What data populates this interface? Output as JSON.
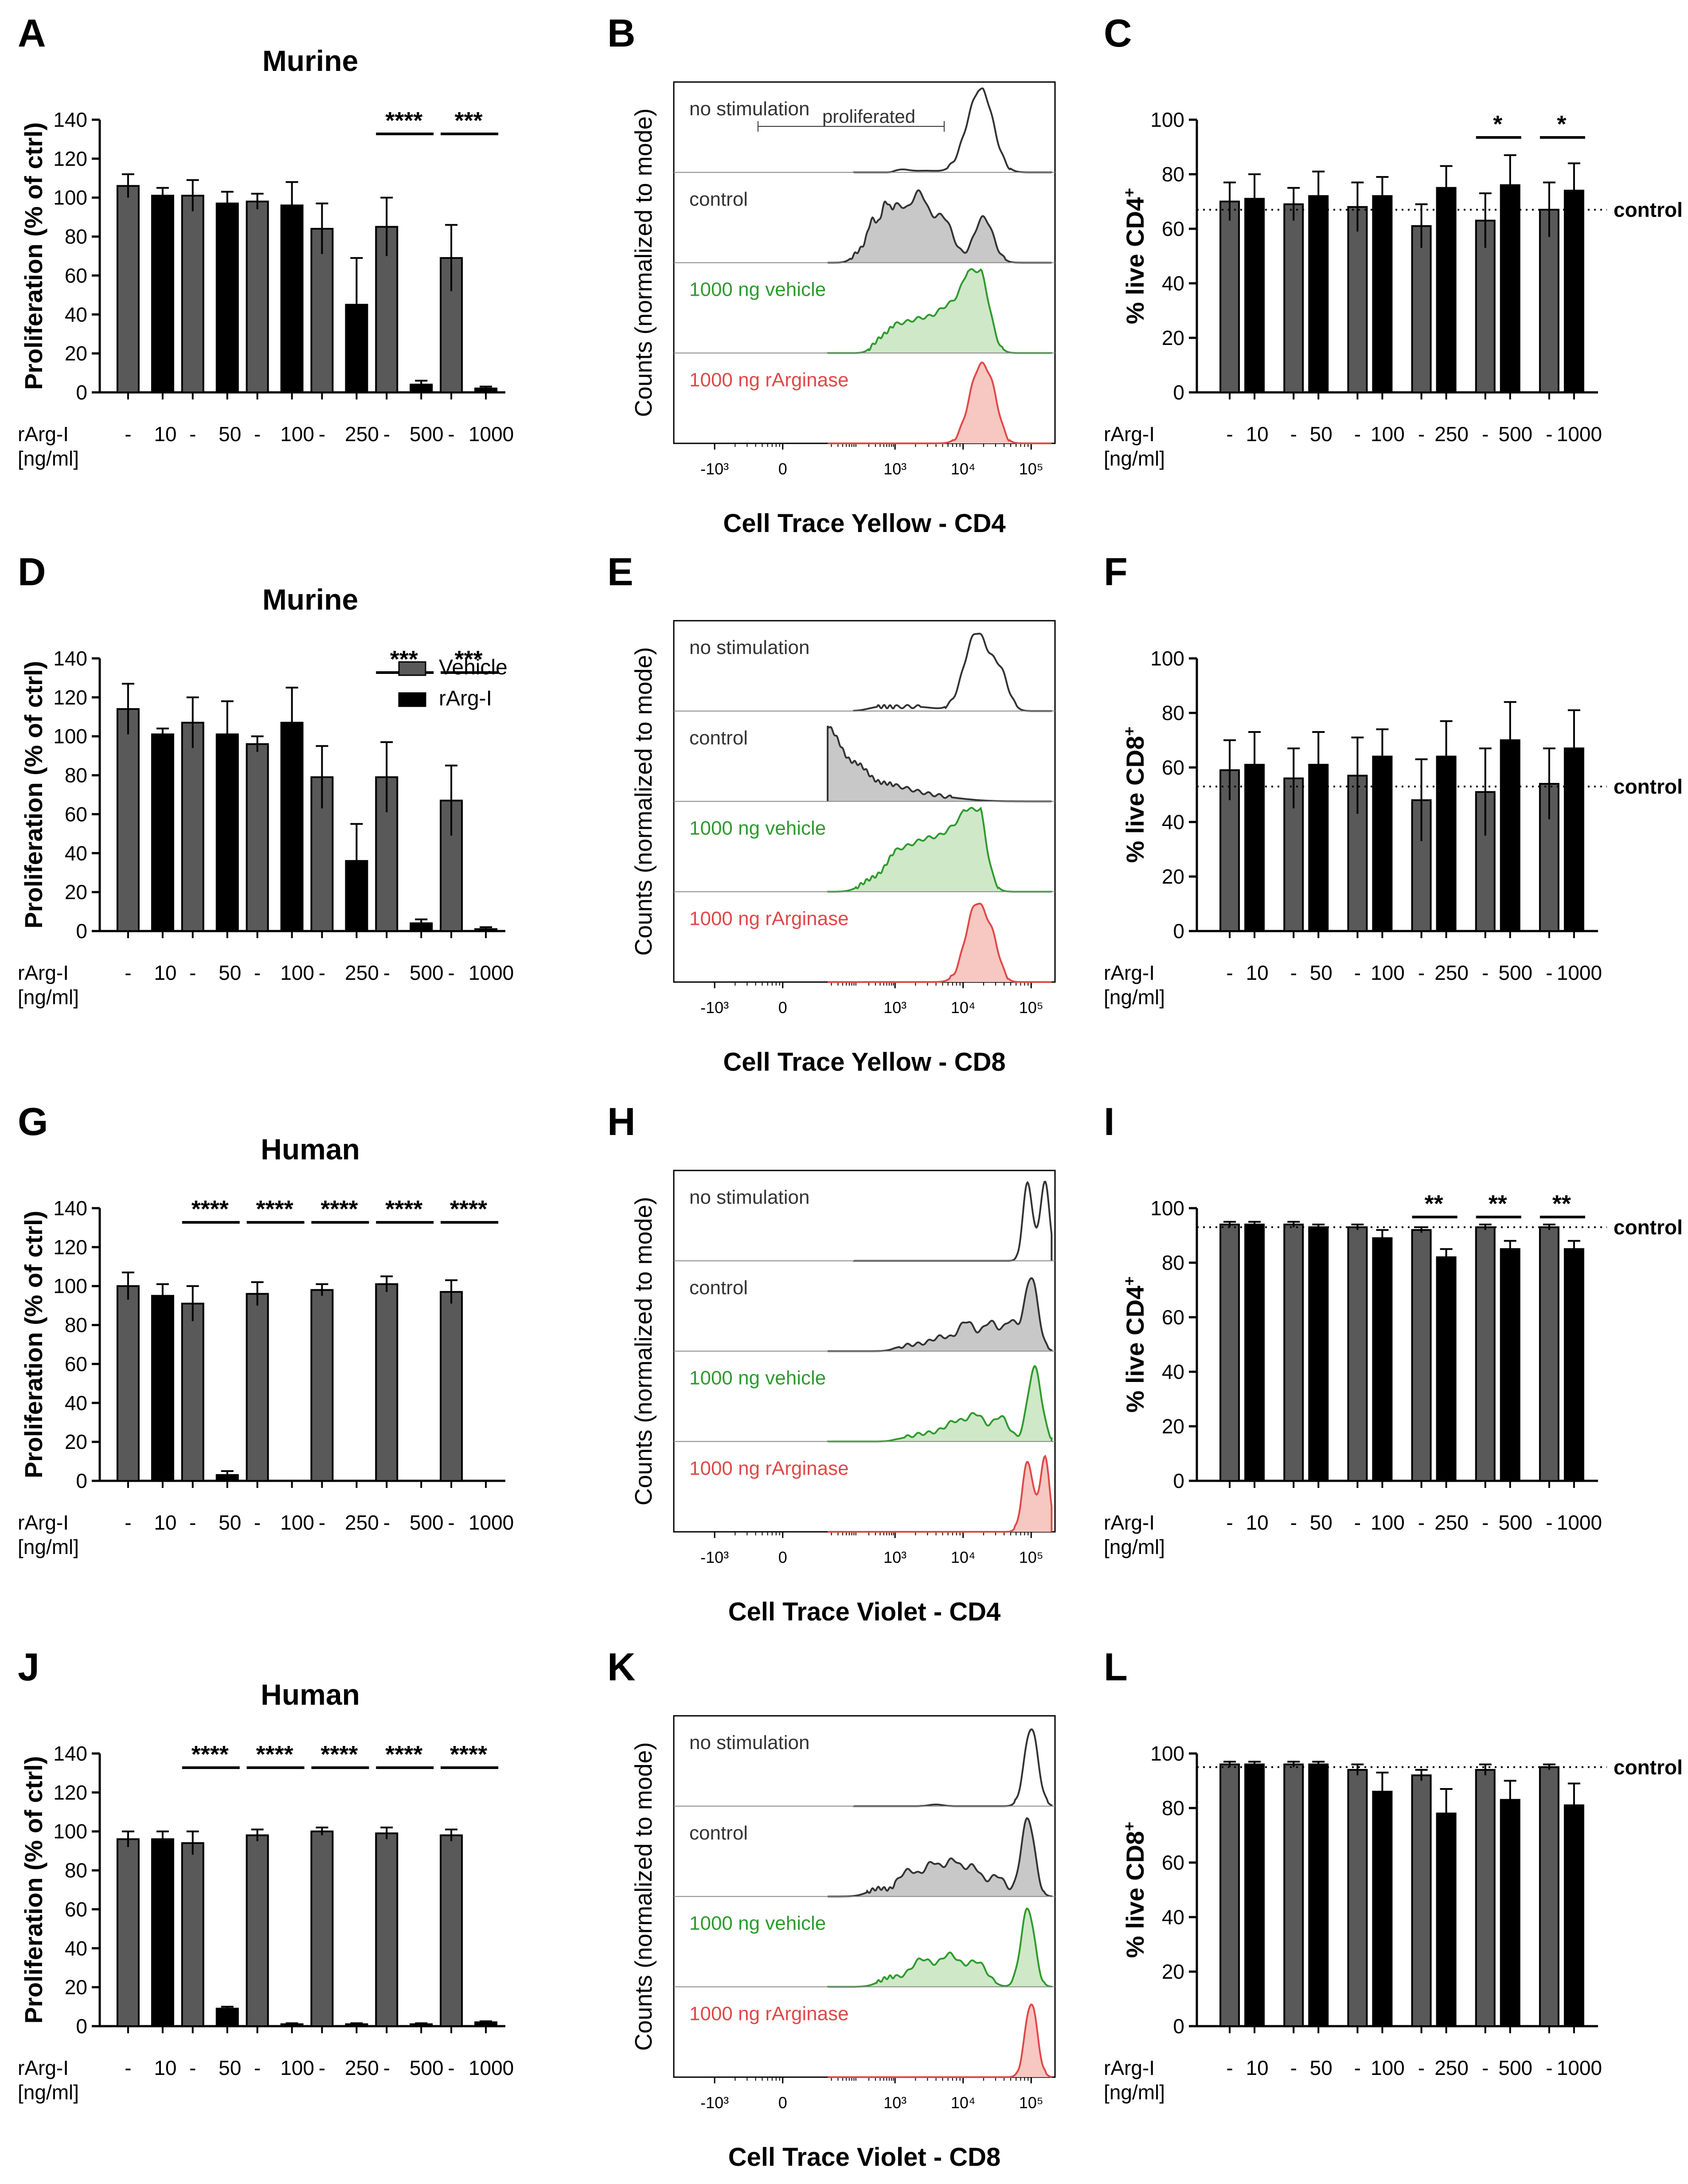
{
  "figure": {
    "colors": {
      "vehicle": "#595959",
      "rarg": "#000000",
      "control_fill": "#c8c8c8",
      "vehicle_line": "#2e9a2e",
      "vehicle_fill": "#cfe8c8",
      "rarg_line": "#e04848",
      "rarg_fill": "#f7c7c2",
      "nostim_line": "#333333"
    },
    "common": {
      "dose_row_label": "rArg-I",
      "dose_row_unit": "[ng/ml]",
      "vehicle_mark": "-",
      "doses": [
        "10",
        "50",
        "100",
        "250",
        "500",
        "1000"
      ],
      "control_label": "control",
      "histogram_ylabel": "Counts (normalized to mode)",
      "legend": {
        "vehicle": "Vehicle",
        "rarg": "rArg-I"
      }
    }
  },
  "chart_data": [
    {
      "panel": "A",
      "type": "bar",
      "title": "Murine",
      "ylabel": "Proliferation (% of ctrl)",
      "ylim": [
        0,
        140
      ],
      "yticks": [
        0,
        20,
        40,
        60,
        80,
        100,
        120,
        140
      ],
      "categories": [
        "10",
        "50",
        "100",
        "250",
        "500",
        "1000"
      ],
      "series": [
        {
          "name": "Vehicle",
          "values": [
            106,
            101,
            98,
            84,
            85,
            69
          ],
          "errors": [
            6,
            8,
            4,
            13,
            15,
            17
          ]
        },
        {
          "name": "rArg-I",
          "values": [
            101,
            97,
            96,
            45,
            4,
            2
          ],
          "errors": [
            4,
            6,
            12,
            24,
            2,
            1
          ]
        }
      ],
      "significance": [
        {
          "category": "500",
          "label": "****"
        },
        {
          "category": "1000",
          "label": "***"
        }
      ]
    },
    {
      "panel": "B",
      "type": "histogram",
      "xlabel": "Cell Trace Yellow - CD4",
      "xticks": [
        "-10³",
        "0",
        "10³",
        "10⁴",
        "10⁵"
      ],
      "tracks": [
        {
          "label": "no stimulation",
          "style": "nostim",
          "peaks": [
            [
              3.1,
              0.03,
              0.1
            ],
            [
              3.45,
              0.02,
              0.22
            ],
            [
              4.28,
              0.95,
              0.17
            ],
            [
              4.05,
              0.2,
              0.15
            ]
          ]
        },
        {
          "label": "control",
          "style": "control",
          "peaks": [
            [
              2.4,
              0.45,
              0.13
            ],
            [
              2.75,
              0.7,
              0.14
            ],
            [
              3.05,
              0.58,
              0.12
            ],
            [
              3.35,
              0.8,
              0.13
            ],
            [
              3.7,
              0.55,
              0.15
            ],
            [
              4.3,
              0.55,
              0.14
            ],
            [
              2.1,
              0.15,
              0.2
            ]
          ]
        },
        {
          "label": "1000 ng vehicle",
          "style": "vehicle",
          "peaks": [
            [
              2.6,
              0.15,
              0.2
            ],
            [
              3.0,
              0.28,
              0.2
            ],
            [
              3.4,
              0.35,
              0.2
            ],
            [
              3.8,
              0.5,
              0.18
            ],
            [
              4.25,
              0.9,
              0.14
            ],
            [
              4.05,
              0.45,
              0.12
            ]
          ]
        },
        {
          "label": "1000 ng rArginase",
          "style": "rarg",
          "peaks": [
            [
              4.25,
              0.92,
              0.16
            ],
            [
              4.45,
              0.25,
              0.1
            ]
          ]
        }
      ],
      "annotation": "proliferated"
    },
    {
      "panel": "C",
      "type": "bar",
      "ylabel_main": "% live CD4",
      "ylabel_sup": "+",
      "ylim": [
        0,
        100
      ],
      "yticks": [
        0,
        20,
        40,
        60,
        80,
        100
      ],
      "categories": [
        "10",
        "50",
        "100",
        "250",
        "500",
        "1000"
      ],
      "series": [
        {
          "name": "Vehicle",
          "values": [
            70,
            69,
            68,
            61,
            63,
            67
          ],
          "errors": [
            7,
            6,
            9,
            8,
            10,
            10
          ]
        },
        {
          "name": "rArg-I",
          "values": [
            71,
            72,
            72,
            75,
            76,
            74
          ],
          "errors": [
            9,
            9,
            7,
            8,
            11,
            10
          ]
        }
      ],
      "control_line": 67,
      "significance": [
        {
          "category": "500",
          "label": "*"
        },
        {
          "category": "1000",
          "label": "*"
        }
      ]
    },
    {
      "panel": "D",
      "type": "bar",
      "title": "Murine",
      "ylabel": "Proliferation (% of ctrl)",
      "ylim": [
        0,
        140
      ],
      "yticks": [
        0,
        20,
        40,
        60,
        80,
        100,
        120,
        140
      ],
      "categories": [
        "10",
        "50",
        "100",
        "250",
        "500",
        "1000"
      ],
      "series": [
        {
          "name": "Vehicle",
          "values": [
            114,
            107,
            96,
            79,
            79,
            67
          ],
          "errors": [
            13,
            13,
            4,
            16,
            18,
            18
          ]
        },
        {
          "name": "rArg-I",
          "values": [
            101,
            101,
            107,
            36,
            4,
            1
          ],
          "errors": [
            3,
            17,
            18,
            19,
            2,
            1
          ]
        }
      ],
      "legend": true,
      "significance": [
        {
          "category": "500",
          "label": "***"
        },
        {
          "category": "1000",
          "label": "***"
        }
      ]
    },
    {
      "panel": "E",
      "type": "histogram",
      "xlabel": "Cell Trace Yellow - CD8",
      "xticks": [
        "-10³",
        "0",
        "10³",
        "10⁴",
        "10⁵"
      ],
      "tracks": [
        {
          "label": "no stimulation",
          "style": "nostim",
          "peaks": [
            [
              2.6,
              0.05,
              0.3
            ],
            [
              3.3,
              0.05,
              0.3
            ],
            [
              4.2,
              0.95,
              0.18
            ],
            [
              4.55,
              0.4,
              0.12
            ]
          ]
        },
        {
          "label": "control",
          "style": "control",
          "peaks": [
            [
              0.25,
              0.95,
              0.2
            ],
            [
              0.55,
              0.8,
              0.22
            ],
            [
              0.95,
              0.78,
              0.25
            ],
            [
              1.4,
              0.6,
              0.25
            ],
            [
              2.0,
              0.4,
              0.3
            ],
            [
              2.8,
              0.2,
              0.4
            ],
            [
              3.6,
              0.05,
              0.4
            ]
          ]
        },
        {
          "label": "1000 ng vehicle",
          "style": "vehicle",
          "peaks": [
            [
              2.4,
              0.15,
              0.3
            ],
            [
              3.0,
              0.4,
              0.25
            ],
            [
              3.5,
              0.55,
              0.25
            ],
            [
              3.95,
              0.65,
              0.2
            ],
            [
              4.2,
              0.9,
              0.13
            ]
          ]
        },
        {
          "label": "1000 ng rArginase",
          "style": "rarg",
          "peaks": [
            [
              4.2,
              0.95,
              0.16
            ],
            [
              4.45,
              0.3,
              0.1
            ]
          ]
        }
      ]
    },
    {
      "panel": "F",
      "type": "bar",
      "ylabel_main": "% live CD8",
      "ylabel_sup": "+",
      "ylim": [
        0,
        100
      ],
      "yticks": [
        0,
        20,
        40,
        60,
        80,
        100
      ],
      "categories": [
        "10",
        "50",
        "100",
        "250",
        "500",
        "1000"
      ],
      "series": [
        {
          "name": "Vehicle",
          "values": [
            59,
            56,
            57,
            48,
            51,
            54
          ],
          "errors": [
            11,
            11,
            14,
            15,
            16,
            13
          ]
        },
        {
          "name": "rArg-I",
          "values": [
            61,
            61,
            64,
            64,
            70,
            67
          ],
          "errors": [
            12,
            12,
            10,
            13,
            14,
            14
          ]
        }
      ],
      "control_line": 53,
      "significance": []
    },
    {
      "panel": "G",
      "type": "bar",
      "title": "Human",
      "ylabel": "Proliferation (% of ctrl)",
      "ylim": [
        0,
        140
      ],
      "yticks": [
        0,
        20,
        40,
        60,
        80,
        100,
        120,
        140
      ],
      "categories": [
        "10",
        "50",
        "100",
        "250",
        "500",
        "1000"
      ],
      "series": [
        {
          "name": "Vehicle",
          "values": [
            100,
            91,
            96,
            98,
            101,
            97
          ],
          "errors": [
            7,
            9,
            6,
            3,
            4,
            6
          ]
        },
        {
          "name": "rArg-I",
          "values": [
            95,
            3,
            0,
            0,
            0,
            0
          ],
          "errors": [
            6,
            2,
            0,
            0,
            0,
            0
          ]
        }
      ],
      "significance": [
        {
          "category": "50",
          "label": "****"
        },
        {
          "category": "100",
          "label": "****"
        },
        {
          "category": "250",
          "label": "****"
        },
        {
          "category": "500",
          "label": "****"
        },
        {
          "category": "1000",
          "label": "****"
        }
      ]
    },
    {
      "panel": "H",
      "type": "histogram",
      "xlabel": "Cell Trace Violet - CD4",
      "xticks": [
        "-10³",
        "0",
        "10³",
        "10⁴",
        "10⁵"
      ],
      "tracks": [
        {
          "label": "no stimulation",
          "style": "nostim",
          "peaks": [
            [
              4.95,
              0.95,
              0.07
            ],
            [
              5.2,
              0.95,
              0.07
            ]
          ]
        },
        {
          "label": "control",
          "style": "control",
          "peaks": [
            [
              3.3,
              0.08,
              0.25
            ],
            [
              3.7,
              0.15,
              0.15
            ],
            [
              4.05,
              0.35,
              0.12
            ],
            [
              4.4,
              0.35,
              0.12
            ],
            [
              4.7,
              0.35,
              0.1
            ],
            [
              5.0,
              0.9,
              0.1
            ]
          ]
        },
        {
          "label": "1000 ng vehicle",
          "style": "vehicle",
          "peaks": [
            [
              3.5,
              0.1,
              0.3
            ],
            [
              3.9,
              0.2,
              0.15
            ],
            [
              4.2,
              0.3,
              0.12
            ],
            [
              4.55,
              0.3,
              0.12
            ],
            [
              5.05,
              0.9,
              0.1
            ]
          ]
        },
        {
          "label": "1000 ng rArginase",
          "style": "rarg",
          "peaks": [
            [
              4.95,
              0.85,
              0.08
            ],
            [
              5.2,
              0.9,
              0.07
            ]
          ]
        }
      ]
    },
    {
      "panel": "I",
      "type": "bar",
      "ylabel_main": "% live CD4",
      "ylabel_sup": "+",
      "ylim": [
        0,
        100
      ],
      "yticks": [
        0,
        20,
        40,
        60,
        80,
        100
      ],
      "categories": [
        "10",
        "50",
        "100",
        "250",
        "500",
        "1000"
      ],
      "series": [
        {
          "name": "Vehicle",
          "values": [
            94,
            94,
            93,
            92,
            93,
            93
          ],
          "errors": [
            1,
            1,
            1,
            1,
            1,
            1
          ]
        },
        {
          "name": "rArg-I",
          "values": [
            94,
            93,
            89,
            82,
            85,
            85
          ],
          "errors": [
            1,
            1,
            3,
            3,
            3,
            3
          ]
        }
      ],
      "control_line": 93,
      "significance": [
        {
          "category": "250",
          "label": "**"
        },
        {
          "category": "500",
          "label": "**"
        },
        {
          "category": "1000",
          "label": "**"
        }
      ]
    },
    {
      "panel": "J",
      "type": "bar",
      "title": "Human",
      "ylabel": "Proliferation (% of ctrl)",
      "ylim": [
        0,
        140
      ],
      "yticks": [
        0,
        20,
        40,
        60,
        80,
        100,
        120,
        140
      ],
      "categories": [
        "10",
        "50",
        "100",
        "250",
        "500",
        "1000"
      ],
      "series": [
        {
          "name": "Vehicle",
          "values": [
            96,
            94,
            98,
            100,
            99,
            98
          ],
          "errors": [
            4,
            6,
            3,
            2,
            3,
            3
          ]
        },
        {
          "name": "rArg-I",
          "values": [
            96,
            9,
            1,
            1,
            1,
            2
          ],
          "errors": [
            4,
            1,
            0.5,
            0.5,
            0.5,
            0.5
          ]
        }
      ],
      "significance": [
        {
          "category": "50",
          "label": "****"
        },
        {
          "category": "100",
          "label": "****"
        },
        {
          "category": "250",
          "label": "****"
        },
        {
          "category": "500",
          "label": "****"
        },
        {
          "category": "1000",
          "label": "****"
        }
      ]
    },
    {
      "panel": "K",
      "type": "histogram",
      "xlabel": "Cell Trace Violet - CD8",
      "xticks": [
        "-10³",
        "0",
        "10³",
        "10⁴",
        "10⁵"
      ],
      "tracks": [
        {
          "label": "no stimulation",
          "style": "nostim",
          "peaks": [
            [
              5.0,
              0.95,
              0.1
            ],
            [
              3.6,
              0.02,
              0.1
            ]
          ]
        },
        {
          "label": "control",
          "style": "control",
          "peaks": [
            [
              2.6,
              0.1,
              0.3
            ],
            [
              3.2,
              0.3,
              0.15
            ],
            [
              3.55,
              0.38,
              0.12
            ],
            [
              3.85,
              0.42,
              0.12
            ],
            [
              4.15,
              0.35,
              0.12
            ],
            [
              4.5,
              0.25,
              0.12
            ],
            [
              4.95,
              0.95,
              0.1
            ]
          ]
        },
        {
          "label": "1000 ng vehicle",
          "style": "vehicle",
          "peaks": [
            [
              2.9,
              0.12,
              0.3
            ],
            [
              3.4,
              0.3,
              0.15
            ],
            [
              3.8,
              0.38,
              0.15
            ],
            [
              4.2,
              0.3,
              0.15
            ],
            [
              4.95,
              0.95,
              0.1
            ]
          ]
        },
        {
          "label": "1000 ng rArginase",
          "style": "rarg",
          "peaks": [
            [
              5.0,
              0.9,
              0.09
            ]
          ]
        }
      ]
    },
    {
      "panel": "L",
      "type": "bar",
      "ylabel_main": "% live CD8",
      "ylabel_sup": "+",
      "ylim": [
        0,
        100
      ],
      "yticks": [
        0,
        20,
        40,
        60,
        80,
        100
      ],
      "categories": [
        "10",
        "50",
        "100",
        "250",
        "500",
        "1000"
      ],
      "series": [
        {
          "name": "Vehicle",
          "values": [
            96,
            96,
            94,
            92,
            94,
            95
          ],
          "errors": [
            1,
            1,
            2,
            2,
            2,
            1
          ]
        },
        {
          "name": "rArg-I",
          "values": [
            96,
            96,
            86,
            78,
            83,
            81
          ],
          "errors": [
            1,
            1,
            7,
            9,
            7,
            8
          ]
        }
      ],
      "control_line": 95,
      "significance": []
    }
  ]
}
